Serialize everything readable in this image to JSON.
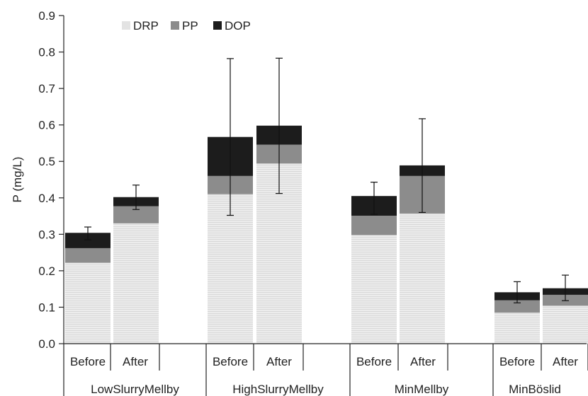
{
  "chart_data": {
    "type": "bar",
    "stacked": true,
    "ylabel": "P (mg/L)",
    "ylim": [
      0,
      0.9
    ],
    "yticks": [
      "0.0",
      "0.1",
      "0.2",
      "0.3",
      "0.4",
      "0.5",
      "0.6",
      "0.7",
      "0.8",
      "0.9"
    ],
    "yticks_values": [
      0,
      0.1,
      0.2,
      0.3,
      0.4,
      0.5,
      0.6,
      0.7,
      0.8,
      0.9
    ],
    "legend_position": "top-left",
    "groups": [
      {
        "name": "LowSlurryMellby",
        "categories": [
          "Before",
          "After"
        ]
      },
      {
        "name": "HighSlurryMellby",
        "categories": [
          "Before",
          "After"
        ]
      },
      {
        "name": "MinMellby",
        "categories": [
          "Before",
          "After"
        ]
      },
      {
        "name": "MinBöslid",
        "categories": [
          "Before",
          "After"
        ]
      }
    ],
    "series": [
      {
        "name": "DRP",
        "color": "#e8e8e8",
        "values": [
          0.222,
          0.33,
          0.41,
          0.494,
          0.298,
          0.357,
          0.085,
          0.104
        ]
      },
      {
        "name": "PP",
        "color": "#8c8c8c",
        "values": [
          0.04,
          0.047,
          0.05,
          0.052,
          0.053,
          0.103,
          0.034,
          0.03
        ]
      },
      {
        "name": "DOP",
        "color": "#1c1c1c",
        "values": [
          0.042,
          0.025,
          0.107,
          0.052,
          0.054,
          0.029,
          0.022,
          0.018
        ]
      }
    ],
    "totals": [
      0.304,
      0.402,
      0.567,
      0.598,
      0.405,
      0.489,
      0.141,
      0.152
    ],
    "error_bars": [
      {
        "low": 0.285,
        "high": 0.32
      },
      {
        "low": 0.368,
        "high": 0.435
      },
      {
        "low": 0.352,
        "high": 0.782
      },
      {
        "low": 0.412,
        "high": 0.783
      },
      {
        "low": 0.355,
        "high": 0.443
      },
      {
        "low": 0.36,
        "high": 0.617
      },
      {
        "low": 0.112,
        "high": 0.17
      },
      {
        "low": 0.118,
        "high": 0.188
      }
    ]
  }
}
